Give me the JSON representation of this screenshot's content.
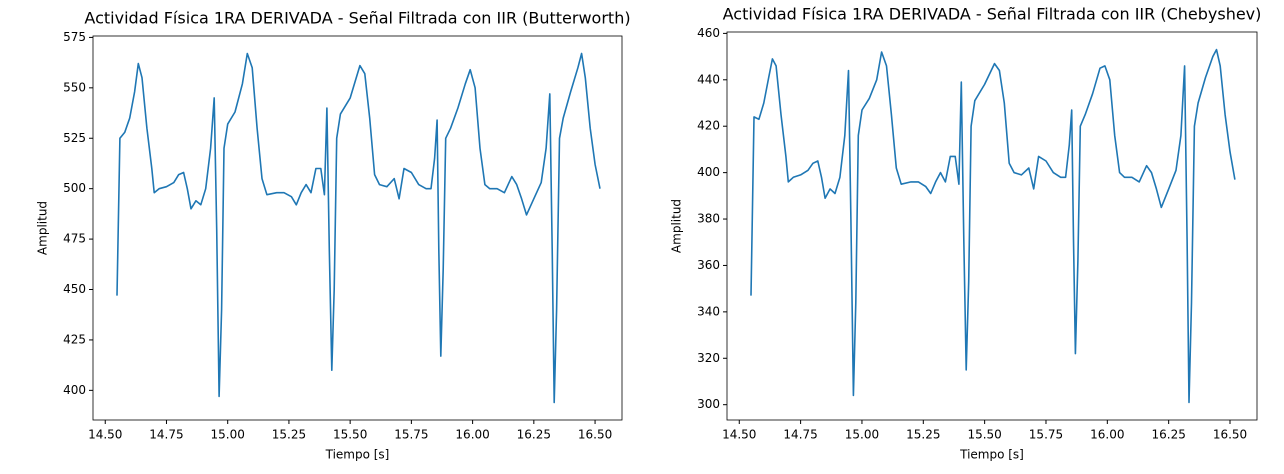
{
  "chart_data": [
    {
      "type": "line",
      "title": "Actividad Física 1RA DERIVADA - Señal Filtrada con IIR (Butterworth)",
      "xlabel": "Tiempo [s]",
      "ylabel": "Amplitud",
      "x": [
        14.548,
        14.56,
        14.58,
        14.6,
        14.62,
        14.635,
        14.65,
        14.67,
        14.69,
        14.7,
        14.72,
        14.75,
        14.78,
        14.8,
        14.82,
        14.835,
        14.85,
        14.87,
        14.89,
        14.91,
        14.93,
        14.945,
        14.955,
        14.965,
        14.975,
        14.985,
        15.0,
        15.03,
        15.06,
        15.08,
        15.1,
        15.12,
        15.14,
        15.16,
        15.2,
        15.23,
        15.26,
        15.28,
        15.3,
        15.32,
        15.34,
        15.36,
        15.38,
        15.395,
        15.405,
        15.415,
        15.425,
        15.435,
        15.445,
        15.46,
        15.5,
        15.54,
        15.56,
        15.58,
        15.6,
        15.62,
        15.65,
        15.68,
        15.7,
        15.72,
        15.75,
        15.78,
        15.81,
        15.83,
        15.845,
        15.855,
        15.862,
        15.87,
        15.88,
        15.89,
        15.91,
        15.94,
        15.97,
        15.99,
        16.01,
        16.03,
        16.05,
        16.07,
        16.1,
        16.13,
        16.16,
        16.18,
        16.2,
        16.22,
        16.25,
        16.28,
        16.3,
        16.315,
        16.325,
        16.333,
        16.343,
        16.355,
        16.37,
        16.4,
        16.43,
        16.445,
        16.46,
        16.48,
        16.5,
        16.52
      ],
      "series": [
        {
          "color": "#1f77b4",
          "values": [
            447,
            525,
            528,
            535,
            548,
            562,
            555,
            530,
            510,
            498,
            500,
            501,
            503,
            507,
            508,
            500,
            490,
            494,
            492,
            500,
            520,
            545,
            480,
            397,
            440,
            520,
            532,
            538,
            552,
            567,
            560,
            530,
            505,
            497,
            498,
            498,
            496,
            492,
            498,
            502,
            498,
            510,
            510,
            497,
            540,
            470,
            410,
            450,
            525,
            537,
            545,
            561,
            557,
            535,
            507,
            502,
            501,
            505,
            495,
            510,
            508,
            502,
            500,
            500,
            515,
            534,
            470,
            417,
            460,
            525,
            530,
            540,
            552,
            559,
            550,
            520,
            502,
            500,
            500,
            498,
            506,
            502,
            495,
            487,
            495,
            503,
            520,
            547,
            470,
            394,
            440,
            525,
            535,
            548,
            560,
            567,
            555,
            530,
            512,
            500
          ]
        }
      ],
      "xlim": [
        14.45,
        16.61
      ],
      "ylim": [
        385.3,
        575.7
      ],
      "xticks": [
        {
          "value": 14.5,
          "label": "14.50"
        },
        {
          "value": 14.75,
          "label": "14.75"
        },
        {
          "value": 15.0,
          "label": "15.00"
        },
        {
          "value": 15.25,
          "label": "15.25"
        },
        {
          "value": 15.5,
          "label": "15.50"
        },
        {
          "value": 15.75,
          "label": "15.75"
        },
        {
          "value": 16.0,
          "label": "16.00"
        },
        {
          "value": 16.25,
          "label": "16.25"
        },
        {
          "value": 16.5,
          "label": "16.50"
        }
      ],
      "yticks": [
        400,
        425,
        450,
        475,
        500,
        525,
        550,
        575
      ]
    },
    {
      "type": "line",
      "title": "Actividad Física 1RA DERIVADA - Señal Filtrada con IIR (Chebyshev)",
      "xlabel": "Tiempo [s]",
      "ylabel": "Amplitud",
      "x": [
        14.548,
        14.56,
        14.58,
        14.6,
        14.62,
        14.635,
        14.65,
        14.67,
        14.69,
        14.7,
        14.72,
        14.75,
        14.78,
        14.8,
        14.82,
        14.835,
        14.85,
        14.87,
        14.89,
        14.91,
        14.93,
        14.945,
        14.955,
        14.965,
        14.975,
        14.985,
        15.0,
        15.03,
        15.06,
        15.08,
        15.1,
        15.12,
        15.14,
        15.16,
        15.2,
        15.23,
        15.26,
        15.28,
        15.3,
        15.32,
        15.34,
        15.36,
        15.38,
        15.395,
        15.405,
        15.415,
        15.425,
        15.435,
        15.445,
        15.46,
        15.5,
        15.54,
        15.56,
        15.58,
        15.6,
        15.62,
        15.65,
        15.68,
        15.7,
        15.72,
        15.75,
        15.78,
        15.81,
        15.83,
        15.845,
        15.855,
        15.862,
        15.87,
        15.88,
        15.89,
        15.91,
        15.94,
        15.97,
        15.99,
        16.01,
        16.03,
        16.05,
        16.07,
        16.1,
        16.13,
        16.16,
        16.18,
        16.2,
        16.22,
        16.25,
        16.28,
        16.3,
        16.315,
        16.325,
        16.333,
        16.343,
        16.355,
        16.37,
        16.4,
        16.43,
        16.445,
        16.46,
        16.48,
        16.5,
        16.52
      ],
      "series": [
        {
          "color": "#1f77b4",
          "values": [
            347,
            424,
            423,
            430,
            441,
            449,
            446,
            425,
            407,
            396,
            398,
            399,
            401,
            404,
            405,
            398,
            389,
            393,
            391,
            398,
            416,
            444,
            380,
            304,
            344,
            416,
            427,
            432,
            440,
            452,
            446,
            425,
            402,
            395,
            396,
            396,
            394,
            391,
            396,
            400,
            396,
            407,
            407,
            395,
            439,
            371,
            315,
            353,
            420,
            431,
            438,
            447,
            444,
            430,
            404,
            400,
            399,
            402,
            393,
            407,
            405,
            400,
            398,
            398,
            412,
            427,
            371,
            322,
            362,
            420,
            425,
            434,
            445,
            446,
            440,
            416,
            400,
            398,
            398,
            396,
            403,
            400,
            393,
            385,
            393,
            401,
            416,
            446,
            371,
            301,
            344,
            420,
            430,
            441,
            450,
            453,
            446,
            425,
            409,
            397
          ]
        }
      ],
      "xlim": [
        14.45,
        16.61
      ],
      "ylim": [
        293.4,
        460.6
      ],
      "xticks": [
        {
          "value": 14.5,
          "label": "14.50"
        },
        {
          "value": 14.75,
          "label": "14.75"
        },
        {
          "value": 15.0,
          "label": "15.00"
        },
        {
          "value": 15.25,
          "label": "15.25"
        },
        {
          "value": 15.5,
          "label": "15.50"
        },
        {
          "value": 15.75,
          "label": "15.75"
        },
        {
          "value": 16.0,
          "label": "16.00"
        },
        {
          "value": 16.25,
          "label": "16.25"
        },
        {
          "value": 16.5,
          "label": "16.50"
        }
      ],
      "yticks": [
        300,
        320,
        340,
        360,
        380,
        400,
        420,
        440,
        460
      ]
    }
  ]
}
